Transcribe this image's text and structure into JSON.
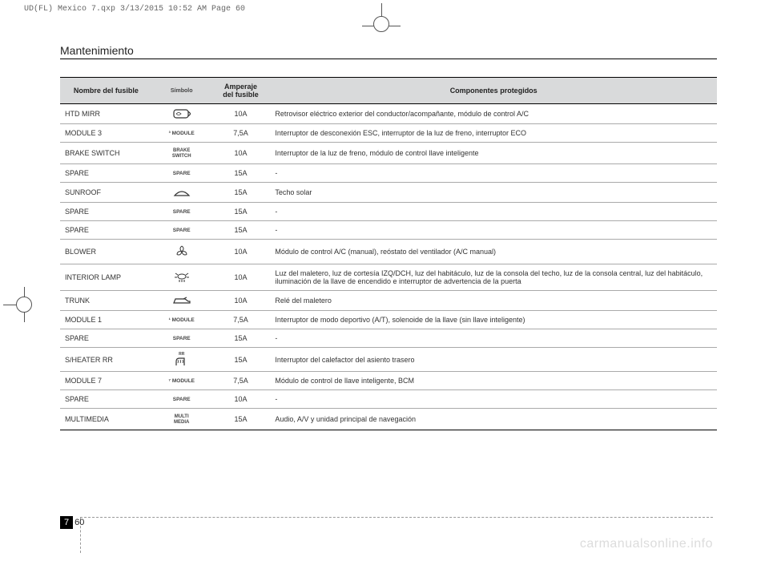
{
  "print_header": "UD(FL) Mexico 7.qxp  3/13/2015  10:52 AM  Page 60",
  "section_title": "Mantenimiento",
  "table": {
    "columns": [
      "Nombre del fusible",
      "Símbolo",
      "Amperaje\ndel fusible",
      "Componentes protegidos"
    ],
    "rows": [
      {
        "name": "HTD MIRR",
        "symbol": "mirror",
        "amp": "10A",
        "desc": "Retrovisor eléctrico exterior del conductor/acompañante, módulo de control A/C"
      },
      {
        "name": "MODULE 3",
        "symbol": "module3",
        "amp": "7,5A",
        "desc": "Interruptor de desconexión ESC, interruptor de la luz de freno, interruptor ECO"
      },
      {
        "name": "BRAKE SWITCH",
        "symbol": "brake",
        "amp": "10A",
        "desc": "Interruptor de la luz de freno, módulo de control llave inteligente"
      },
      {
        "name": "SPARE",
        "symbol": "spare",
        "amp": "15A",
        "desc": "-"
      },
      {
        "name": "SUNROOF",
        "symbol": "sunroof",
        "amp": "15A",
        "desc": "Techo solar"
      },
      {
        "name": "SPARE",
        "symbol": "spare",
        "amp": "15A",
        "desc": "-"
      },
      {
        "name": "SPARE",
        "symbol": "spare",
        "amp": "15A",
        "desc": "-"
      },
      {
        "name": "BLOWER",
        "symbol": "blower",
        "amp": "10A",
        "desc": "Módulo de control A/C (manual), reóstato del ventilador (A/C manual)"
      },
      {
        "name": "INTERIOR LAMP",
        "symbol": "lamp",
        "amp": "10A",
        "desc": "Luz del maletero, luz de cortesía IZQ/DCH, luz del habitáculo, luz de la consola del techo, luz de la consola central, luz del habitáculo, iluminación de la llave de encendido e interruptor de advertencia de la puerta"
      },
      {
        "name": "TRUNK",
        "symbol": "trunk",
        "amp": "10A",
        "desc": "Relé del maletero"
      },
      {
        "name": "MODULE 1",
        "symbol": "module1",
        "amp": "7,5A",
        "desc": "Interruptor de modo deportivo (A/T), solenoide de la llave (sin llave inteligente)"
      },
      {
        "name": "SPARE",
        "symbol": "spare",
        "amp": "15A",
        "desc": "-"
      },
      {
        "name": "S/HEATER RR",
        "symbol": "sheater",
        "amp": "15A",
        "desc": "Interruptor del calefactor del asiento trasero"
      },
      {
        "name": "MODULE 7",
        "symbol": "module7",
        "amp": "7,5A",
        "desc": "Módulo de control de llave inteligente, BCM"
      },
      {
        "name": "SPARE",
        "symbol": "spare",
        "amp": "10A",
        "desc": "-"
      },
      {
        "name": "MULTIMEDIA",
        "symbol": "multi",
        "amp": "15A",
        "desc": "Audio, A/V y unidad principal de navegación"
      }
    ]
  },
  "symbol_labels": {
    "spare": "SPARE",
    "module3": "³ MODULE",
    "module1": "¹ MODULE",
    "module7": "⁷ MODULE",
    "brake": "BRAKE\nSWITCH",
    "multi": "MULTI\nMEDIA",
    "sheater": "RR"
  },
  "page_number_chapter": "7",
  "page_number_page": "60",
  "watermark": "carmanualsonline.info",
  "styling": {
    "header_bg": "#d9dadb",
    "border_color": "#000000",
    "row_border": "#aaaaaa",
    "font_size_table": 9,
    "font_size_title": 14,
    "page_bg": "#ffffff"
  }
}
